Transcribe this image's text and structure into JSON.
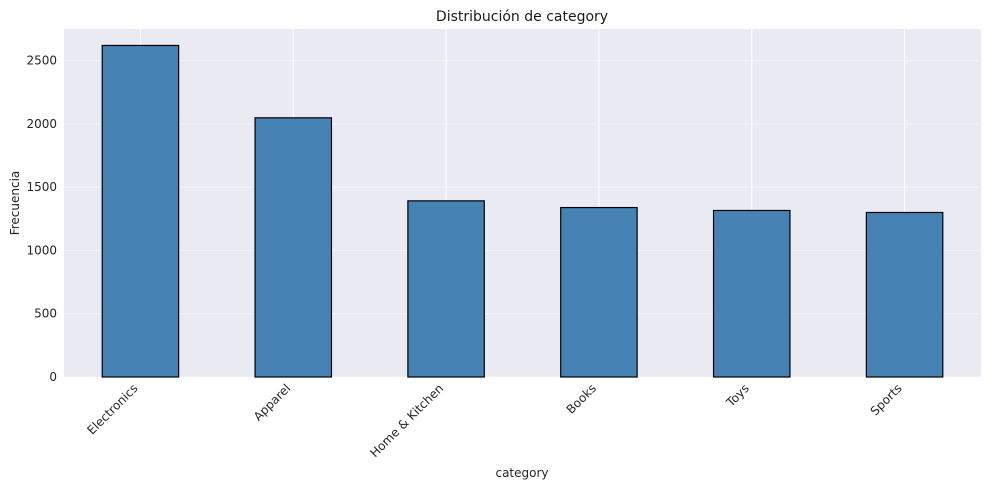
{
  "chart_data": {
    "type": "bar",
    "title": "Distribución de category",
    "xlabel": "category",
    "ylabel": "Frecuencia",
    "categories": [
      "Electronics",
      "Apparel",
      "Home & Kitchen",
      "Books",
      "Toys",
      "Sports"
    ],
    "values": [
      2620,
      2048,
      1392,
      1339,
      1316,
      1300
    ],
    "ylim": [
      0,
      2750
    ],
    "yticks": [
      0,
      500,
      1000,
      1500,
      2000,
      2500
    ],
    "grid": true,
    "bar_color": "#4682b4",
    "bar_edge_color": "#000000",
    "background_color": "#eaeaf2"
  }
}
